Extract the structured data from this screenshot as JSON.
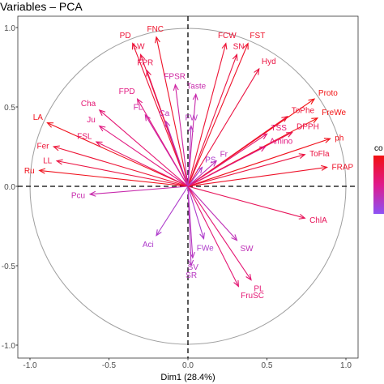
{
  "chart_data": {
    "type": "scatter",
    "subtype": "pca-variable-correlation-circle",
    "title": "Variables – PCA",
    "xlabel": "Dim1 (28.4%)",
    "ylabel": "",
    "xlim": [
      -1.0,
      1.0
    ],
    "ylim": [
      -1.0,
      1.0
    ],
    "xticks": [
      "-1.0",
      "-0.5",
      "0.0",
      "0.5",
      "1.0"
    ],
    "yticks": [
      "-1.0",
      "-0.5",
      "0.0",
      "0.5",
      "1.0"
    ],
    "unit_circle": true,
    "zero_lines": "dashed",
    "grid": false,
    "legend": {
      "title": "co",
      "type": "colorbar",
      "placement": "right",
      "colors": [
        "#8c52f5",
        "#e0198c",
        "#f21010"
      ]
    },
    "variables": [
      {
        "name": "PD",
        "x": -0.35,
        "y": 0.9,
        "contrib": 0.85
      },
      {
        "name": "FNC",
        "x": -0.2,
        "y": 0.94,
        "contrib": 0.9
      },
      {
        "name": "LW",
        "x": -0.3,
        "y": 0.83,
        "contrib": 0.8
      },
      {
        "name": "FPR",
        "x": -0.26,
        "y": 0.73,
        "contrib": 0.75
      },
      {
        "name": "FPD",
        "x": -0.32,
        "y": 0.55,
        "contrib": 0.55
      },
      {
        "name": "FPSR",
        "x": -0.08,
        "y": 0.64,
        "contrib": 0.4
      },
      {
        "name": "Taste",
        "x": 0.05,
        "y": 0.58,
        "contrib": 0.35
      },
      {
        "name": "FCW",
        "x": 0.24,
        "y": 0.9,
        "contrib": 0.85
      },
      {
        "name": "FST",
        "x": 0.38,
        "y": 0.9,
        "contrib": 0.9
      },
      {
        "name": "SN",
        "x": 0.31,
        "y": 0.83,
        "contrib": 0.8
      },
      {
        "name": "Hyd",
        "x": 0.45,
        "y": 0.74,
        "contrib": 0.8
      },
      {
        "name": "Cha",
        "x": -0.56,
        "y": 0.48,
        "contrib": 0.6
      },
      {
        "name": "FL",
        "x": -0.27,
        "y": 0.45,
        "contrib": 0.4
      },
      {
        "name": "Ca",
        "x": -0.14,
        "y": 0.41,
        "contrib": 0.3
      },
      {
        "name": "FW",
        "x": 0.02,
        "y": 0.38,
        "contrib": 0.25
      },
      {
        "name": "Ju",
        "x": -0.56,
        "y": 0.38,
        "contrib": 0.55
      },
      {
        "name": "LA",
        "x": -0.89,
        "y": 0.4,
        "contrib": 0.95
      },
      {
        "name": "Fer",
        "x": -0.85,
        "y": 0.25,
        "contrib": 0.85
      },
      {
        "name": "FSL",
        "x": -0.58,
        "y": 0.28,
        "contrib": 0.65
      },
      {
        "name": "LL",
        "x": -0.83,
        "y": 0.16,
        "contrib": 0.8
      },
      {
        "name": "Ru",
        "x": -0.94,
        "y": 0.1,
        "contrib": 0.95
      },
      {
        "name": "Proto",
        "x": 0.8,
        "y": 0.55,
        "contrib": 1.0
      },
      {
        "name": "ToPhe",
        "x": 0.63,
        "y": 0.44,
        "contrib": 0.85
      },
      {
        "name": "FreWe",
        "x": 0.82,
        "y": 0.43,
        "contrib": 1.0
      },
      {
        "name": "ph",
        "x": 0.9,
        "y": 0.3,
        "contrib": 0.95
      },
      {
        "name": "TSS",
        "x": 0.5,
        "y": 0.33,
        "contrib": 0.6
      },
      {
        "name": "DPPH",
        "x": 0.66,
        "y": 0.34,
        "contrib": 0.75
      },
      {
        "name": "Amino",
        "x": 0.49,
        "y": 0.25,
        "contrib": 0.55
      },
      {
        "name": "ToFla",
        "x": 0.74,
        "y": 0.2,
        "contrib": 0.8
      },
      {
        "name": "FRAP",
        "x": 0.88,
        "y": 0.12,
        "contrib": 0.9
      },
      {
        "name": "Fr",
        "x": 0.18,
        "y": 0.16,
        "contrib": 0.3
      },
      {
        "name": "PS",
        "x": 0.09,
        "y": 0.12,
        "contrib": 0.2
      },
      {
        "name": "ChlA",
        "x": 0.74,
        "y": -0.2,
        "contrib": 0.7
      },
      {
        "name": "Pcu",
        "x": -0.62,
        "y": -0.05,
        "contrib": 0.35
      },
      {
        "name": "Aci",
        "x": -0.2,
        "y": -0.31,
        "contrib": 0.2
      },
      {
        "name": "FWe",
        "x": 0.1,
        "y": -0.33,
        "contrib": 0.2
      },
      {
        "name": "SW",
        "x": 0.31,
        "y": -0.34,
        "contrib": 0.3
      },
      {
        "name": "SR",
        "x": 0.02,
        "y": -0.5,
        "contrib": 0.25
      },
      {
        "name": "SV",
        "x": 0.03,
        "y": -0.45,
        "contrib": 0.25
      },
      {
        "name": "PL",
        "x": 0.4,
        "y": -0.59,
        "contrib": 0.6
      },
      {
        "name": "FruSC",
        "x": 0.32,
        "y": -0.63,
        "contrib": 0.6
      }
    ]
  }
}
